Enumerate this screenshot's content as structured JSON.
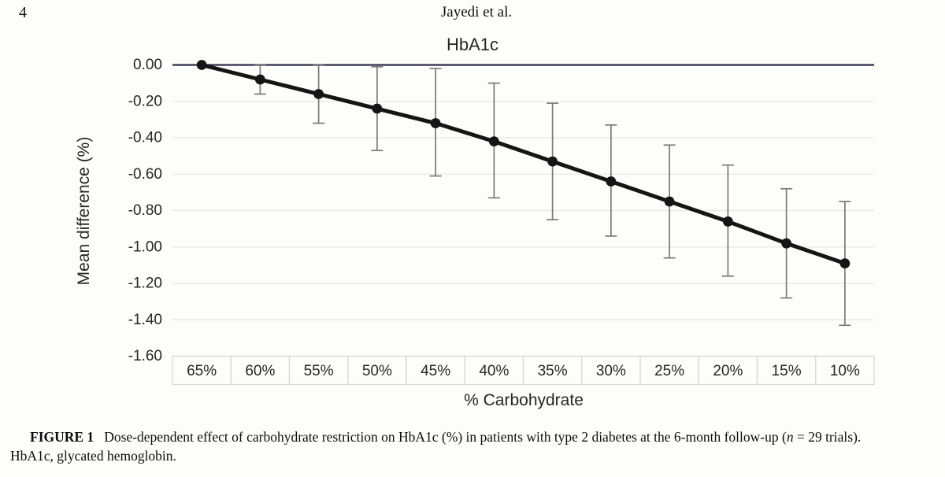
{
  "page": {
    "number": "4",
    "running_head": "Jayedi et al."
  },
  "chart_data": {
    "type": "line",
    "title": "HbA1c",
    "xlabel": "% Carbohydrate",
    "ylabel": "Mean difference (%)",
    "categories": [
      "65%",
      "60%",
      "55%",
      "50%",
      "45%",
      "40%",
      "35%",
      "30%",
      "25%",
      "20%",
      "15%",
      "10%"
    ],
    "series": [
      {
        "name": "Mean difference",
        "values": [
          0.0,
          -0.08,
          -0.16,
          -0.24,
          -0.32,
          -0.42,
          -0.53,
          -0.64,
          -0.75,
          -0.86,
          -0.98,
          -1.09
        ]
      },
      {
        "name": "95% CI lower",
        "values": [
          0.0,
          -0.16,
          -0.32,
          -0.47,
          -0.61,
          -0.73,
          -0.85,
          -0.94,
          -1.06,
          -1.16,
          -1.28,
          -1.43
        ]
      },
      {
        "name": "95% CI upper",
        "values": [
          0.0,
          0.0,
          0.0,
          -0.01,
          -0.02,
          -0.1,
          -0.21,
          -0.33,
          -0.44,
          -0.55,
          -0.68,
          -0.75
        ]
      }
    ],
    "ylim": [
      -1.6,
      0.0
    ],
    "ytick_values": [
      0.0,
      -0.2,
      -0.4,
      -0.6,
      -0.8,
      -1.0,
      -1.2,
      -1.4,
      -1.6
    ],
    "ytick_labels": [
      "0.00",
      "-0.20",
      "-0.40",
      "-0.60",
      "-0.80",
      "-1.00",
      "-1.20",
      "-1.40",
      "-1.60"
    ],
    "grid": true,
    "legend": "none",
    "colors": {
      "line": "#151515",
      "marker": "#151515",
      "error_bar": "#7a7a7a",
      "zero_axis": "#3f3f5a",
      "gridline": "#e7e7e4",
      "cell_border": "#d9d9d9",
      "label_text": "#262626"
    }
  },
  "figure_caption": {
    "label": "FIGURE 1",
    "text_before_n": "Dose-dependent effect of carbohydrate restriction on HbA1c (%) in patients with type 2 diabetes at the 6-month follow-up (",
    "n_symbol": "n",
    "text_after_n": " = 29 trials).",
    "line2": "HbA1c, glycated hemoglobin."
  }
}
